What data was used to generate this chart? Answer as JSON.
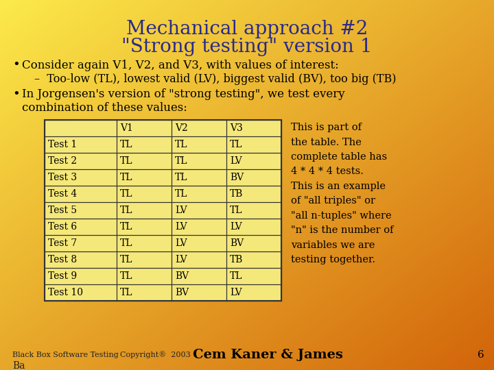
{
  "title_line1": "Mechanical approach #2",
  "title_line2": "\"Strong testing\" version 1",
  "bullet1": "Consider again V1, V2, and V3, with values of interest:",
  "sub_bullet1": "–  Too-low (TL), lowest valid (LV), biggest valid (BV), too big (TB)",
  "bullet2_line1": "In Jorgensen's version of \"strong testing\", we test every",
  "bullet2_line2": "combination of these values:",
  "table_headers": [
    "",
    "V1",
    "V2",
    "V3"
  ],
  "table_rows": [
    [
      "Test 1",
      "TL",
      "TL",
      "TL"
    ],
    [
      "Test 2",
      "TL",
      "TL",
      "LV"
    ],
    [
      "Test 3",
      "TL",
      "TL",
      "BV"
    ],
    [
      "Test 4",
      "TL",
      "TL",
      "TB"
    ],
    [
      "Test 5",
      "TL",
      "LV",
      "TL"
    ],
    [
      "Test 6",
      "TL",
      "LV",
      "LV"
    ],
    [
      "Test 7",
      "TL",
      "LV",
      "BV"
    ],
    [
      "Test 8",
      "TL",
      "LV",
      "TB"
    ],
    [
      "Test 9",
      "TL",
      "BV",
      "TL"
    ],
    [
      "Test 10",
      "TL",
      "BV",
      "LV"
    ]
  ],
  "side_note_lines": [
    "This is part of",
    "the table. The",
    "complete table has",
    "4 * 4 * 4 tests.",
    "This is an example",
    "of \"all triples\" or",
    "\"all n-tuples\" where",
    "\"n\" is the number of",
    "variables we are",
    "testing together."
  ],
  "footer_left": "Black Box Software Testing",
  "footer_copyright": "Copyright®  2003",
  "footer_center": "Cem Kaner & James",
  "footer_page": "6",
  "title_color": "#2a2a8a",
  "text_color": "#000000",
  "table_bg": "#f5e87a",
  "table_border": "#333333"
}
